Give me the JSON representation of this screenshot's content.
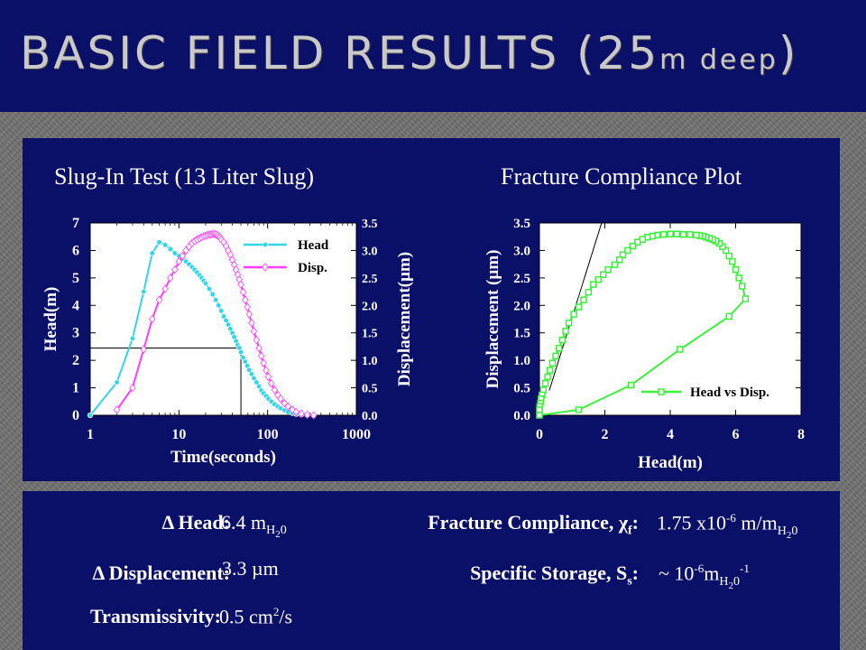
{
  "slide": {
    "title_main": "BASIC FIELD RESULTS (25",
    "title_small": "m deep",
    "title_close": ")"
  },
  "chart_data": [
    {
      "type": "scatter",
      "title": "Slug-In Test   (13 Liter Slug)",
      "xlabel": "Time(seconds)",
      "xscale": "log",
      "xlim": [
        1,
        1000
      ],
      "xticks": [
        "1",
        "10",
        "100",
        "1000"
      ],
      "ylabel": "Head(m)",
      "ylim": [
        0,
        7
      ],
      "yticks": [
        "0",
        "1",
        "2",
        "3",
        "4",
        "5",
        "6",
        "7"
      ],
      "y2label": "Displacement(µm)",
      "y2lim": [
        0,
        3.5
      ],
      "y2ticks": [
        "0.0",
        "0.5",
        "1.0",
        "1.5",
        "2.0",
        "2.5",
        "3.0",
        "3.5"
      ],
      "legend": "top-right",
      "series": [
        {
          "name": "Head",
          "axis": "left",
          "color": "#31d7e8",
          "x": [
            1,
            2,
            3,
            4,
            5,
            6,
            7,
            8,
            9,
            10,
            11,
            12,
            13,
            14,
            15,
            16,
            17,
            18,
            19,
            20,
            22,
            24,
            26,
            28,
            30,
            32,
            34,
            36,
            38,
            40,
            42,
            44,
            46,
            48,
            50,
            53,
            56,
            59,
            62,
            66,
            70,
            75,
            80,
            85,
            90,
            96,
            102,
            110,
            120,
            130,
            140,
            155,
            170,
            190,
            210,
            240,
            280,
            330
          ],
          "y": [
            0,
            1.2,
            2.8,
            4.5,
            5.9,
            6.3,
            6.2,
            6.05,
            5.9,
            5.8,
            5.7,
            5.6,
            5.5,
            5.4,
            5.3,
            5.2,
            5.1,
            5.0,
            4.9,
            4.8,
            4.6,
            4.4,
            4.2,
            4.0,
            3.8,
            3.6,
            3.45,
            3.3,
            3.15,
            3.0,
            2.85,
            2.7,
            2.55,
            2.45,
            2.3,
            2.1,
            1.95,
            1.8,
            1.65,
            1.5,
            1.35,
            1.2,
            1.05,
            0.9,
            0.8,
            0.7,
            0.6,
            0.5,
            0.4,
            0.32,
            0.25,
            0.18,
            0.12,
            0.08,
            0.05,
            0.03,
            0.01,
            0
          ]
        },
        {
          "name": "Disp.",
          "axis": "right",
          "color": "#ff3cff",
          "x": [
            2,
            3,
            4,
            5,
            6,
            7,
            8,
            9,
            10,
            11,
            12,
            13,
            14,
            15,
            16,
            17,
            18,
            19,
            20,
            21,
            22,
            23,
            24,
            25,
            26,
            27,
            28,
            29,
            30,
            32,
            34,
            36,
            38,
            40,
            42,
            44,
            46,
            48,
            50,
            53,
            56,
            59,
            62,
            66,
            70,
            75,
            80,
            85,
            90,
            96,
            102,
            110,
            120,
            130,
            140,
            155,
            170,
            190,
            210,
            240,
            280,
            330
          ],
          "y": [
            0.1,
            0.5,
            1.2,
            1.75,
            2.1,
            2.3,
            2.5,
            2.65,
            2.8,
            2.9,
            3.0,
            3.07,
            3.13,
            3.17,
            3.2,
            3.22,
            3.24,
            3.26,
            3.27,
            3.28,
            3.29,
            3.29,
            3.3,
            3.3,
            3.29,
            3.28,
            3.26,
            3.24,
            3.2,
            3.15,
            3.08,
            3.0,
            2.92,
            2.83,
            2.74,
            2.65,
            2.56,
            2.47,
            2.38,
            2.24,
            2.1,
            1.97,
            1.84,
            1.68,
            1.53,
            1.37,
            1.22,
            1.08,
            0.95,
            0.82,
            0.7,
            0.58,
            0.46,
            0.37,
            0.3,
            0.22,
            0.16,
            0.1,
            0.06,
            0.03,
            0.01,
            0
          ]
        }
      ],
      "guide_lines": [
        {
          "from": [
            1,
            2.45
          ],
          "to": [
            50,
            2.45
          ]
        },
        {
          "from": [
            50,
            2.45
          ],
          "to": [
            50,
            0
          ]
        }
      ]
    },
    {
      "type": "scatter",
      "title": "Fracture Compliance Plot",
      "xlabel": "Head(m)",
      "xlim": [
        0,
        8
      ],
      "xticks": [
        "0",
        "2",
        "4",
        "6",
        "8"
      ],
      "ylabel": "Displacement (µm)",
      "ylim": [
        0,
        3.5
      ],
      "yticks": [
        "0.0",
        "0.5",
        "1.0",
        "1.5",
        "2.0",
        "2.5",
        "3.0",
        "3.5"
      ],
      "legend": "bottom-right",
      "series": [
        {
          "name": "Head vs Disp.",
          "color": "#3cf03c",
          "x": [
            0,
            1.2,
            2.8,
            4.3,
            5.8,
            6.3,
            6.2,
            6.1,
            6.0,
            5.9,
            5.8,
            5.7,
            5.6,
            5.5,
            5.4,
            5.3,
            5.2,
            5.1,
            5.0,
            4.9,
            4.8,
            4.6,
            4.4,
            4.2,
            4.0,
            3.8,
            3.6,
            3.45,
            3.3,
            3.15,
            3.0,
            2.85,
            2.7,
            2.55,
            2.45,
            2.3,
            2.1,
            1.95,
            1.8,
            1.65,
            1.5,
            1.35,
            1.2,
            1.05,
            0.9,
            0.8,
            0.7,
            0.6,
            0.5,
            0.4,
            0.32,
            0.25,
            0.18,
            0.12,
            0.08,
            0.05,
            0.03,
            0.01,
            0
          ],
          "y": [
            0,
            0.1,
            0.55,
            1.2,
            1.8,
            2.12,
            2.35,
            2.5,
            2.65,
            2.8,
            2.9,
            3.0,
            3.07,
            3.13,
            3.17,
            3.2,
            3.22,
            3.24,
            3.26,
            3.27,
            3.28,
            3.29,
            3.29,
            3.3,
            3.3,
            3.29,
            3.28,
            3.26,
            3.24,
            3.2,
            3.15,
            3.08,
            3.0,
            2.92,
            2.83,
            2.74,
            2.65,
            2.56,
            2.47,
            2.38,
            2.24,
            2.1,
            1.97,
            1.84,
            1.68,
            1.53,
            1.37,
            1.22,
            1.08,
            0.95,
            0.82,
            0.7,
            0.58,
            0.46,
            0.37,
            0.3,
            0.22,
            0.16,
            0.1
          ]
        }
      ],
      "guide_lines": [
        {
          "from": [
            0.3,
            0.45
          ],
          "to": [
            1.9,
            3.5
          ]
        }
      ]
    }
  ],
  "results": {
    "head": {
      "label": "Δ Head:",
      "value": "6.4 m",
      "sub": "H",
      "sub2": "2",
      "sub3": "0"
    },
    "displacement": {
      "label": "Δ Displacement:",
      "value": "3.3 µm"
    },
    "transmissivity": {
      "label": "Transmissivity:",
      "value": "0.5 cm",
      "sup": "2",
      "tail": "/s"
    },
    "compliance": {
      "label": "Fracture Compliance, χ",
      "label_sub": "f",
      "label_end": ":",
      "value": "1.75 x10",
      "sup": "-6",
      "tail": " m/m",
      "sub": "H",
      "sub2": "2",
      "sub3": "0"
    },
    "storage": {
      "label": "Specific Storage, S",
      "label_sub": "s",
      "label_end": ":",
      "value": "~ 10",
      "sup": "-6",
      "tail": "m",
      "sub": "H",
      "sub2": "2",
      "sub3": "0",
      "sup2": "-1"
    }
  }
}
